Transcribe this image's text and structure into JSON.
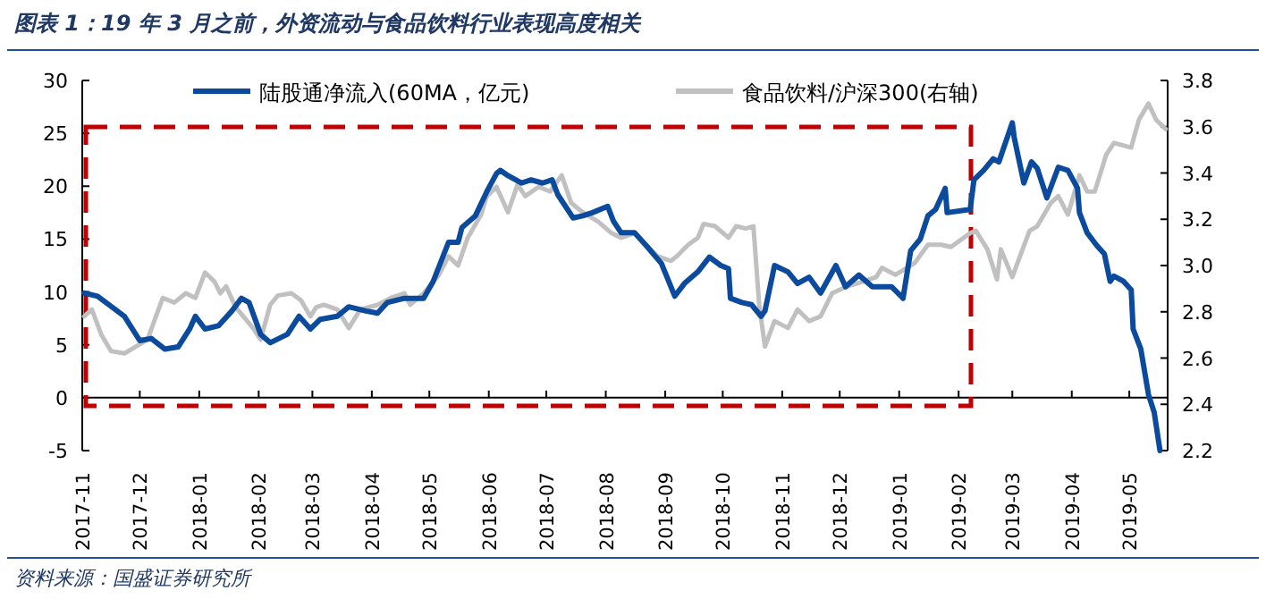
{
  "chart_data": {
    "type": "line",
    "title": "图表 1：19 年 3 月之前，外资流动与食品饮料行业表现高度相关",
    "annotations": [
      "资料来源：国盛证券研究所"
    ],
    "xlim": [
      "2017-11-01",
      "2019-05-21"
    ],
    "xticks": [
      "2017-11",
      "2017-12",
      "2018-01",
      "2018-02",
      "2018-03",
      "2018-04",
      "2018-05",
      "2018-06",
      "2018-07",
      "2018-08",
      "2018-09",
      "2018-10",
      "2018-11",
      "2018-12",
      "2019-01",
      "2019-02",
      "2019-03",
      "2019-04",
      "2019-05"
    ],
    "ylim": [
      -5,
      30
    ],
    "yticks": [
      -5,
      0,
      5,
      10,
      15,
      20,
      25,
      30
    ],
    "y2lim": [
      2.2,
      3.8
    ],
    "y2ticks": [
      {
        "value": 2.2,
        "label": "2.2"
      },
      {
        "value": 2.4,
        "label": "2.4"
      },
      {
        "value": 2.6,
        "label": "2.6"
      },
      {
        "value": 2.8,
        "label": "2.8"
      },
      {
        "value": 3.0,
        "label": "3.0"
      },
      {
        "value": 3.2,
        "label": "3.2"
      },
      {
        "value": 3.4,
        "label": "3.4"
      },
      {
        "value": 3.6,
        "label": "3.6"
      },
      {
        "value": 3.8,
        "label": "3.8"
      }
    ],
    "legend": "top",
    "marker": "none",
    "line_style": "solid",
    "series": [
      {
        "name": "陆股通净流入(60MA，亿元)",
        "color": "#0b4a9c",
        "x": [
          "2017-11-02",
          "2017-11-09",
          "2017-11-23",
          "2017-12-01",
          "2017-12-07",
          "2017-12-14",
          "2017-12-21",
          "2017-12-27",
          "2017-12-30",
          "2018-01-04",
          "2018-01-11",
          "2018-01-18",
          "2018-01-23",
          "2018-01-27",
          "2018-02-02",
          "2018-02-07",
          "2018-02-16",
          "2018-02-22",
          "2018-02-28",
          "2018-03-05",
          "2018-03-14",
          "2018-03-20",
          "2018-03-29",
          "2018-04-04",
          "2018-04-09",
          "2018-04-18",
          "2018-04-28",
          "2018-05-03",
          "2018-05-11",
          "2018-05-16",
          "2018-05-18",
          "2018-05-25",
          "2018-05-31",
          "2018-06-05",
          "2018-06-07",
          "2018-06-11",
          "2018-06-18",
          "2018-06-23",
          "2018-06-29",
          "2018-07-04",
          "2018-07-07",
          "2018-07-15",
          "2018-07-20",
          "2018-07-25",
          "2018-08-02",
          "2018-08-05",
          "2018-08-09",
          "2018-08-16",
          "2018-08-22",
          "2018-08-30",
          "2018-09-06",
          "2018-09-11",
          "2018-09-18",
          "2018-09-24",
          "2018-09-30",
          "2018-10-04",
          "2018-10-05",
          "2018-10-11",
          "2018-10-16",
          "2018-10-21",
          "2018-10-23",
          "2018-10-28",
          "2018-11-04",
          "2018-11-09",
          "2018-11-15",
          "2018-11-21",
          "2018-11-29",
          "2018-12-04",
          "2018-12-11",
          "2018-12-18",
          "2018-12-28",
          "2019-01-02",
          "2019-01-03",
          "2019-01-07",
          "2019-01-12",
          "2019-01-16",
          "2019-01-20",
          "2019-01-25",
          "2019-01-26",
          "2019-02-07",
          "2019-02-09",
          "2019-02-14",
          "2019-02-19",
          "2019-02-22",
          "2019-03-01",
          "2019-03-02",
          "2019-03-07",
          "2019-03-11",
          "2019-03-14",
          "2019-03-19",
          "2019-03-25",
          "2019-03-30",
          "2019-04-04",
          "2019-04-05",
          "2019-04-09",
          "2019-04-14",
          "2019-04-18",
          "2019-04-21",
          "2019-04-23",
          "2019-04-28",
          "2019-05-02",
          "2019-05-03",
          "2019-05-07",
          "2019-05-11",
          "2019-05-14",
          "2019-05-17"
        ],
        "values": [
          9.9,
          9.6,
          7.7,
          5.4,
          5.6,
          4.6,
          4.8,
          6.5,
          7.7,
          6.5,
          6.8,
          8.2,
          9.4,
          9.0,
          6.0,
          5.2,
          6.0,
          7.7,
          6.5,
          7.4,
          7.7,
          8.6,
          8.2,
          8.0,
          9.0,
          9.4,
          9.4,
          11.0,
          14.7,
          14.7,
          16.1,
          17.2,
          19.5,
          21.2,
          21.5,
          21.0,
          20.3,
          20.6,
          20.3,
          20.6,
          19.2,
          17.0,
          17.2,
          17.5,
          18.1,
          16.7,
          15.6,
          15.6,
          14.4,
          12.7,
          9.6,
          10.8,
          11.9,
          13.3,
          12.5,
          12.2,
          9.4,
          9.0,
          8.8,
          7.7,
          8.2,
          12.5,
          11.9,
          10.8,
          11.4,
          9.9,
          12.5,
          10.5,
          11.6,
          10.5,
          10.5,
          9.6,
          9.4,
          13.9,
          15.0,
          17.2,
          17.8,
          19.8,
          17.5,
          17.8,
          20.6,
          21.5,
          22.6,
          22.3,
          26.0,
          24.6,
          20.3,
          22.3,
          21.7,
          18.9,
          21.8,
          21.5,
          19.8,
          17.5,
          15.6,
          14.4,
          13.6,
          11.0,
          11.5,
          11.0,
          10.2,
          6.5,
          4.6,
          0.3,
          -1.4,
          -5.0
        ]
      },
      {
        "name": "食品饮料/沪深300(右轴)",
        "color": "#c0c0c0",
        "axis": "y2",
        "x": [
          "2017-11-02",
          "2017-11-06",
          "2017-11-11",
          "2017-11-16",
          "2017-11-23",
          "2017-11-29",
          "2017-12-05",
          "2017-12-13",
          "2017-12-19",
          "2017-12-25",
          "2017-12-30",
          "2018-01-04",
          "2018-01-09",
          "2018-01-12",
          "2018-01-15",
          "2018-01-20",
          "2018-01-24",
          "2018-01-29",
          "2018-02-02",
          "2018-02-07",
          "2018-02-11",
          "2018-02-18",
          "2018-02-23",
          "2018-02-28",
          "2018-03-03",
          "2018-03-07",
          "2018-03-14",
          "2018-03-20",
          "2018-03-26",
          "2018-04-04",
          "2018-04-11",
          "2018-04-18",
          "2018-04-21",
          "2018-04-28",
          "2018-05-06",
          "2018-05-11",
          "2018-05-16",
          "2018-05-21",
          "2018-05-28",
          "2018-05-31",
          "2018-06-05",
          "2018-06-11",
          "2018-06-16",
          "2018-06-20",
          "2018-06-27",
          "2018-07-03",
          "2018-07-09",
          "2018-07-14",
          "2018-07-20",
          "2018-07-28",
          "2018-08-04",
          "2018-08-09",
          "2018-08-16",
          "2018-08-22",
          "2018-08-28",
          "2018-09-04",
          "2018-09-07",
          "2018-09-13",
          "2018-09-18",
          "2018-09-21",
          "2018-09-27",
          "2018-10-04",
          "2018-10-08",
          "2018-10-13",
          "2018-10-17",
          "2018-10-20",
          "2018-10-23",
          "2018-10-28",
          "2018-11-04",
          "2018-11-09",
          "2018-11-15",
          "2018-11-21",
          "2018-11-27",
          "2018-12-05",
          "2018-12-13",
          "2018-12-20",
          "2018-12-23",
          "2018-12-30",
          "2019-01-09",
          "2019-01-16",
          "2019-01-23",
          "2019-01-28",
          "2019-02-07",
          "2019-02-10",
          "2019-02-16",
          "2019-02-21",
          "2019-02-23",
          "2019-03-01",
          "2019-03-05",
          "2019-03-10",
          "2019-03-14",
          "2019-03-21",
          "2019-03-25",
          "2019-03-30",
          "2019-04-05",
          "2019-04-09",
          "2019-04-13",
          "2019-04-19",
          "2019-04-23",
          "2019-05-02",
          "2019-05-06",
          "2019-05-11",
          "2019-05-15",
          "2019-05-20"
        ],
        "values": [
          2.78,
          2.81,
          2.7,
          2.63,
          2.62,
          2.65,
          2.68,
          2.86,
          2.84,
          2.88,
          2.86,
          2.97,
          2.93,
          2.88,
          2.91,
          2.82,
          2.78,
          2.73,
          2.68,
          2.83,
          2.87,
          2.88,
          2.85,
          2.78,
          2.82,
          2.83,
          2.81,
          2.73,
          2.81,
          2.83,
          2.86,
          2.88,
          2.83,
          2.88,
          2.96,
          3.04,
          3.0,
          3.12,
          3.22,
          3.3,
          3.34,
          3.23,
          3.35,
          3.3,
          3.34,
          3.32,
          3.39,
          3.27,
          3.23,
          3.19,
          3.14,
          3.12,
          3.14,
          3.09,
          3.04,
          3.02,
          3.04,
          3.09,
          3.12,
          3.18,
          3.17,
          3.12,
          3.17,
          3.16,
          3.17,
          2.83,
          2.65,
          2.76,
          2.73,
          2.81,
          2.76,
          2.78,
          2.88,
          2.91,
          2.93,
          2.95,
          2.99,
          2.96,
          3.01,
          3.09,
          3.09,
          3.08,
          3.14,
          3.15,
          3.07,
          2.94,
          3.07,
          2.95,
          3.04,
          3.15,
          3.17,
          3.27,
          3.3,
          3.22,
          3.39,
          3.32,
          3.32,
          3.48,
          3.53,
          3.51,
          3.63,
          3.7,
          3.63,
          3.59
        ]
      }
    ]
  }
}
